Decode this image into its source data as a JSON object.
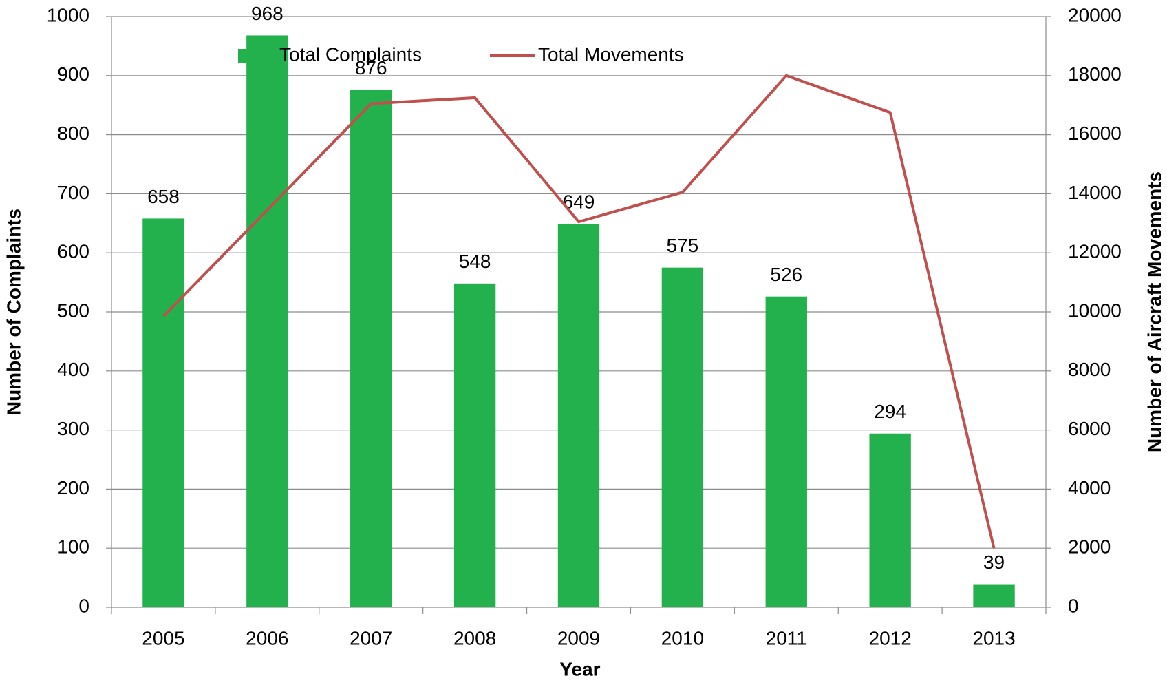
{
  "chart_data": {
    "type": "bar",
    "x_label": "Year",
    "y_label": "Number of Complaints",
    "y2_label": "Number of Aircraft Movements",
    "categories": [
      "2005",
      "2006",
      "2007",
      "2008",
      "2009",
      "2010",
      "2011",
      "2012",
      "2013"
    ],
    "series": [
      {
        "name": "Total Complaints",
        "type": "bar",
        "color": "#23b14d",
        "values": [
          658,
          968,
          876,
          548,
          649,
          575,
          526,
          294,
          39
        ],
        "data_labels": true
      },
      {
        "name": "Total Movements",
        "type": "line",
        "axis": "y2",
        "color": "#c0504d",
        "values": [
          9850,
          13450,
          17050,
          17250,
          13050,
          14050,
          18000,
          16750,
          2000
        ]
      }
    ],
    "ylim": [
      0,
      1000
    ],
    "yticks": [
      0,
      100,
      200,
      300,
      400,
      500,
      600,
      700,
      800,
      900,
      1000
    ],
    "y2lim": [
      0,
      20000
    ],
    "y2ticks": [
      0,
      2000,
      4000,
      6000,
      8000,
      10000,
      12000,
      14000,
      16000,
      18000,
      20000
    ],
    "grid": true,
    "legend": "top"
  }
}
